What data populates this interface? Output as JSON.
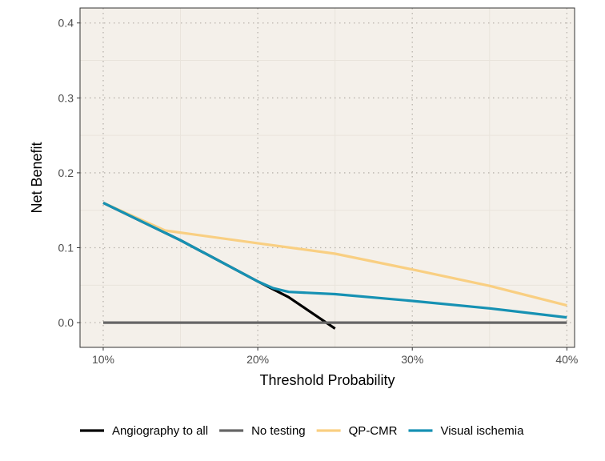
{
  "chart_data": {
    "type": "line",
    "title": "",
    "xlabel": "Threshold Probability",
    "ylabel": "Net Benefit",
    "xlim": [
      0.085,
      0.405
    ],
    "ylim": [
      -0.033,
      0.42
    ],
    "x_ticks": [
      0.1,
      0.2,
      0.3,
      0.4
    ],
    "x_tick_labels": [
      "10%",
      "20%",
      "30%",
      "40%"
    ],
    "y_ticks": [
      0.0,
      0.1,
      0.2,
      0.3,
      0.4
    ],
    "y_tick_labels": [
      "0.0",
      "0.1",
      "0.2",
      "0.3",
      "0.4"
    ],
    "grid": true,
    "legend_position": "bottom",
    "panel_background": "#F4F0EA",
    "series": [
      {
        "name": "Angiography to all",
        "color": "#000000",
        "points": [
          [
            0.1,
            0.16
          ],
          [
            0.15,
            0.11
          ],
          [
            0.2,
            0.055
          ],
          [
            0.22,
            0.034
          ],
          [
            0.25,
            -0.008
          ]
        ]
      },
      {
        "name": "No testing",
        "color": "#666666",
        "points": [
          [
            0.1,
            0.0
          ],
          [
            0.4,
            0.0
          ]
        ]
      },
      {
        "name": "QP-CMR",
        "color": "#F9CF82",
        "points": [
          [
            0.1,
            0.16
          ],
          [
            0.14,
            0.123
          ],
          [
            0.2,
            0.106
          ],
          [
            0.25,
            0.092
          ],
          [
            0.3,
            0.071
          ],
          [
            0.35,
            0.049
          ],
          [
            0.4,
            0.023
          ]
        ]
      },
      {
        "name": "Visual ischemia",
        "color": "#1691B3",
        "points": [
          [
            0.1,
            0.16
          ],
          [
            0.15,
            0.11
          ],
          [
            0.2,
            0.055
          ],
          [
            0.21,
            0.046
          ],
          [
            0.22,
            0.041
          ],
          [
            0.25,
            0.038
          ],
          [
            0.3,
            0.029
          ],
          [
            0.35,
            0.019
          ],
          [
            0.4,
            0.007
          ]
        ]
      }
    ]
  }
}
